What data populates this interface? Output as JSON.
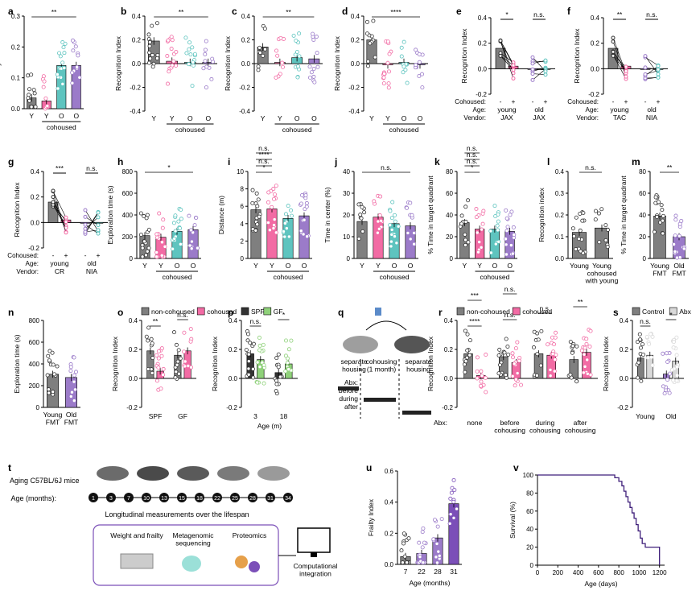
{
  "colors": {
    "grey": "#7f7f7f",
    "pink": "#f26ba4",
    "teal": "#5ec4bf",
    "purple": "#9b7bc9",
    "green": "#8fd17a",
    "dark": "#333333",
    "lightgrey": "#d9d9d9",
    "deeppurple": "#7b4fb8"
  },
  "panels": [
    {
      "id": "a",
      "type": "bar",
      "ylabel": "Frailty Index",
      "ylim": [
        0,
        0.3
      ],
      "yticks": [
        "0.0",
        "0.1",
        "0.2",
        "0.3"
      ],
      "xlabels": [
        "Y",
        "Y",
        "O",
        "O"
      ],
      "group": "cohoused",
      "bars": [
        0.035,
        0.025,
        0.14,
        0.14
      ],
      "colors": [
        "grey",
        "pink",
        "teal",
        "purple"
      ],
      "sig": [
        "**"
      ]
    },
    {
      "id": "b",
      "type": "bar",
      "ylabel": "Recognition Index",
      "ylim": [
        -0.4,
        0.4
      ],
      "yticks": [
        "-0.4",
        "-0.2",
        "0.0",
        "0.2",
        "0.4"
      ],
      "xlabels": [
        "Y",
        "Y",
        "O",
        "O"
      ],
      "group": "cohoused",
      "bars": [
        0.19,
        0.02,
        0.01,
        0.01
      ],
      "colors": [
        "grey",
        "pink",
        "teal",
        "purple"
      ],
      "sig": [
        "**"
      ]
    },
    {
      "id": "c",
      "type": "bar",
      "ylabel": "Recognition Index",
      "ylim": [
        -0.4,
        0.4
      ],
      "yticks": [
        "-0.4",
        "-0.2",
        "0.0",
        "0.2",
        "0.4"
      ],
      "xlabels": [
        "Y",
        "Y",
        "O",
        "O"
      ],
      "group": "cohoused",
      "bars": [
        0.14,
        0.01,
        0.05,
        0.04
      ],
      "colors": [
        "grey",
        "pink",
        "teal",
        "purple"
      ],
      "sig": [
        "**"
      ]
    },
    {
      "id": "d",
      "type": "bar",
      "ylabel": "Recognition Index",
      "ylim": [
        -0.4,
        0.4
      ],
      "yticks": [
        "-0.4",
        "-0.2",
        "0.0",
        "0.2",
        "0.4"
      ],
      "xlabels": [
        "Y",
        "Y",
        "O",
        "O"
      ],
      "group": "cohoused",
      "bars": [
        0.2,
        -0.01,
        0.01,
        -0.01
      ],
      "colors": [
        "grey",
        "pink",
        "teal",
        "purple"
      ],
      "sig": [
        "****"
      ]
    },
    {
      "id": "e",
      "type": "paired",
      "ylabel": "Recognition Index",
      "yticks": [
        "-0.2",
        "0.0",
        "0.2",
        "0.4"
      ],
      "rows": {
        "cohoused": [
          "-",
          "+",
          "-",
          "+"
        ],
        "age": [
          "young",
          "old"
        ],
        "vendor": [
          "JAX",
          "JAX"
        ]
      },
      "sig": [
        "*",
        "n.s."
      ]
    },
    {
      "id": "f",
      "type": "paired",
      "ylabel": "Recognition Index",
      "yticks": [
        "-0.2",
        "0.0",
        "0.2",
        "0.4"
      ],
      "rows": {
        "cohoused": [
          "-",
          "+",
          "-",
          "+"
        ],
        "age": [
          "young",
          "old"
        ],
        "vendor": [
          "TAC",
          "NIA"
        ]
      },
      "sig": [
        "**",
        "n.s."
      ]
    },
    {
      "id": "g",
      "type": "paired",
      "ylabel": "Recognition Index",
      "yticks": [
        "-0.2",
        "0.0",
        "0.2",
        "0.4"
      ],
      "rows": {
        "cohoused": [
          "-",
          "+",
          "-",
          "+"
        ],
        "age": [
          "young",
          "old"
        ],
        "vendor": [
          "CR",
          "NIA"
        ]
      },
      "sig": [
        "***",
        "n.s."
      ]
    },
    {
      "id": "h",
      "type": "bar",
      "ylabel": "Exploration time (s)",
      "ylim": [
        0,
        800
      ],
      "yticks": [
        "0",
        "200",
        "400",
        "600",
        "800"
      ],
      "xlabels": [
        "Y",
        "Y",
        "O",
        "O"
      ],
      "group": "cohoused",
      "bars": [
        210,
        195,
        250,
        265
      ],
      "colors": [
        "grey",
        "pink",
        "teal",
        "purple"
      ],
      "sig": [
        "*"
      ]
    },
    {
      "id": "i",
      "type": "bar",
      "ylabel": "Distance (m)",
      "ylim": [
        0,
        10
      ],
      "yticks": [
        "0",
        "2",
        "4",
        "6",
        "8",
        "10"
      ],
      "xlabels": [
        "Y",
        "Y",
        "O",
        "O"
      ],
      "group": "cohoused",
      "bars": [
        5.6,
        5.7,
        4.6,
        4.9
      ],
      "colors": [
        "grey",
        "pink",
        "teal",
        "purple"
      ],
      "sig": [
        "*",
        "n.s.",
        "****",
        "n.s."
      ]
    },
    {
      "id": "j",
      "type": "bar",
      "ylabel": "Time in center (%)",
      "ylim": [
        0,
        40
      ],
      "yticks": [
        "0",
        "10",
        "20",
        "30",
        "40"
      ],
      "xlabels": [
        "Y",
        "Y",
        "O",
        "O"
      ],
      "group": "cohoused",
      "bars": [
        17,
        19,
        16,
        15
      ],
      "colors": [
        "grey",
        "pink",
        "teal",
        "purple"
      ],
      "sig": [
        "n.s."
      ]
    },
    {
      "id": "k",
      "type": "bar",
      "ylabel": "% Time in target quadrant",
      "ylim": [
        0,
        80
      ],
      "yticks": [
        "0",
        "20",
        "40",
        "60",
        "80"
      ],
      "xlabels": [
        "Y",
        "Y",
        "O",
        "O"
      ],
      "group": "cohoused",
      "bars": [
        33,
        27,
        27,
        25
      ],
      "colors": [
        "grey",
        "pink",
        "teal",
        "purple"
      ],
      "sig": [
        "*",
        "n.s.",
        "n.s.",
        "n.s."
      ]
    },
    {
      "id": "l",
      "type": "bar",
      "ylabel": "Recognition index",
      "ylim": [
        0,
        0.4
      ],
      "yticks": [
        "0.0",
        "0.1",
        "0.2",
        "0.3",
        "0.4"
      ],
      "xlabels": [
        "Young",
        "Young\ncohoused\nwith young"
      ],
      "bars": [
        0.12,
        0.14
      ],
      "colors": [
        "grey",
        "grey"
      ],
      "sig": [
        "n.s."
      ]
    },
    {
      "id": "m",
      "type": "bar",
      "ylabel": "% Time in target quadrant",
      "ylim": [
        0,
        80
      ],
      "yticks": [
        "0",
        "20",
        "40",
        "60",
        "80"
      ],
      "xlabels": [
        "Young\nFMT",
        "Old\nFMT"
      ],
      "bars": [
        39,
        20
      ],
      "colors": [
        "grey",
        "purple"
      ],
      "sig": [
        "**"
      ]
    },
    {
      "id": "n",
      "type": "bar",
      "ylabel": "Exploration time (s)",
      "ylim": [
        0,
        800
      ],
      "yticks": [
        "0",
        "200",
        "400",
        "600",
        "800"
      ],
      "xlabels": [
        "Young\nFMT",
        "Old\nFMT"
      ],
      "bars": [
        305,
        275
      ],
      "colors": [
        "grey",
        "purple"
      ],
      "sig": []
    },
    {
      "id": "o",
      "type": "bar",
      "ylabel": "Recognition Index",
      "ylim": [
        -0.2,
        0.4
      ],
      "yticks": [
        "-0.2",
        "0.0",
        "0.2",
        "0.4"
      ],
      "xlabels": [
        "SPF",
        "GF"
      ],
      "legend": [
        "non-cohoused",
        "cohoused"
      ],
      "bars": [
        0.19,
        0.05,
        0.16,
        0.19
      ],
      "colors": [
        "grey",
        "pink",
        "grey",
        "pink"
      ],
      "sig": [
        "**",
        "n.s."
      ]
    },
    {
      "id": "p",
      "type": "bar",
      "ylabel": "Recognition Index",
      "ylim": [
        -0.2,
        0.4
      ],
      "yticks": [
        "-0.2",
        "0.0",
        "0.2",
        "0.4"
      ],
      "xlabels": [
        "3",
        "18"
      ],
      "xtitle": "Age (m)",
      "legend": [
        "SPF",
        "GF"
      ],
      "bars": [
        0.17,
        0.13,
        0.04,
        0.1
      ],
      "colors": [
        "dark",
        "green",
        "dark",
        "green"
      ],
      "sig": [
        "n.s.",
        "*"
      ]
    },
    {
      "id": "r",
      "type": "bar",
      "ylabel": "Recognition Index",
      "ylim": [
        -0.2,
        0.4
      ],
      "yticks": [
        "-0.2",
        "0.0",
        "0.2",
        "0.4"
      ],
      "xlabels": [
        "none",
        "before\ncohousing",
        "during\ncohousing",
        "after\ncohousing"
      ],
      "rowlabel": "Abx:",
      "legend": [
        "non-cohoused",
        "cohoused"
      ],
      "bars": [
        0.17,
        0.02,
        0.15,
        0.11,
        0.17,
        0.16,
        0.13,
        0.18
      ],
      "colors": [
        "grey",
        "pink",
        "grey",
        "pink",
        "grey",
        "pink",
        "grey",
        "pink"
      ],
      "sig": [
        "****",
        "n.s.",
        "n.s.",
        "**",
        "***",
        "n.s."
      ]
    },
    {
      "id": "s",
      "type": "bar",
      "ylabel": "Recognition Index",
      "ylim": [
        -0.2,
        0.4
      ],
      "yticks": [
        "-0.2",
        "0.0",
        "0.2",
        "0.4"
      ],
      "xlabels": [
        "Young",
        "Old"
      ],
      "legend": [
        "Control",
        "Abx"
      ],
      "bars": [
        0.14,
        0.16,
        0.03,
        0.12
      ],
      "colors": [
        "grey",
        "lightgrey",
        "purple",
        "lightgrey"
      ],
      "sig": [
        "n.s.",
        "*"
      ]
    },
    {
      "id": "u",
      "type": "bar",
      "ylabel": "Frailty Index",
      "ylim": [
        0,
        0.6
      ],
      "yticks": [
        "0.0",
        "0.2",
        "0.4",
        "0.6"
      ],
      "xlabels": [
        "7",
        "22",
        "28",
        "31"
      ],
      "xtitle": "Age (months)",
      "bars": [
        0.05,
        0.07,
        0.17,
        0.39
      ],
      "colors": [
        "grey",
        "purple",
        "purple",
        "deeppurple"
      ],
      "sig": []
    }
  ],
  "panel_q": {
    "labels": [
      "separate\nhousing",
      "cohousing\n(1 month)",
      "separate\nhousing"
    ],
    "abx_label": "Abx:",
    "rows": [
      "before",
      "during",
      "after"
    ]
  },
  "panel_t": {
    "title": "Aging C57BL/6J mice",
    "age_label": "Age (months):",
    "ages": [
      "1",
      "3",
      "7",
      "10",
      "13",
      "15",
      "18",
      "22",
      "25",
      "28",
      "31",
      "34"
    ],
    "subtitle": "Longitudinal measurements over the lifespan",
    "boxes": [
      "Weight and frailty",
      "Metagenomic\nsequencing",
      "Proteomics"
    ],
    "output": "Computational\nintegration"
  },
  "panel_v": {
    "ylabel": "Survival (%)",
    "xlabel": "Age (days)",
    "yticks": [
      "0",
      "20",
      "40",
      "60",
      "80",
      "100"
    ],
    "xticks": [
      "0",
      "200",
      "400",
      "600",
      "800",
      "1000",
      "1200"
    ],
    "xlim": [
      0,
      1250
    ],
    "ylim": [
      0,
      100
    ],
    "steps": [
      [
        0,
        100
      ],
      [
        700,
        100
      ],
      [
        760,
        97
      ],
      [
        800,
        93
      ],
      [
        830,
        88
      ],
      [
        850,
        82
      ],
      [
        870,
        76
      ],
      [
        890,
        70
      ],
      [
        910,
        64
      ],
      [
        930,
        58
      ],
      [
        950,
        52
      ],
      [
        970,
        45
      ],
      [
        990,
        38
      ],
      [
        1010,
        30
      ],
      [
        1030,
        24
      ],
      [
        1060,
        20
      ],
      [
        1120,
        20
      ],
      [
        1200,
        0
      ]
    ]
  },
  "chart_data": [
    {
      "type": "bar",
      "id": "a",
      "categories": [
        "Y",
        "Y",
        "O",
        "O"
      ],
      "values": [
        0.035,
        0.025,
        0.14,
        0.14
      ],
      "ylabel": "Frailty Index",
      "ylim": [
        0,
        0.3
      ]
    },
    {
      "type": "bar",
      "id": "b",
      "categories": [
        "Y",
        "Y",
        "O",
        "O"
      ],
      "values": [
        0.19,
        0.02,
        0.01,
        0.01
      ],
      "ylabel": "Recognition Index",
      "ylim": [
        -0.4,
        0.4
      ]
    },
    {
      "type": "bar",
      "id": "c",
      "categories": [
        "Y",
        "Y",
        "O",
        "O"
      ],
      "values": [
        0.14,
        0.01,
        0.05,
        0.04
      ],
      "ylabel": "Recognition Index",
      "ylim": [
        -0.4,
        0.4
      ]
    },
    {
      "type": "bar",
      "id": "d",
      "categories": [
        "Y",
        "Y",
        "O",
        "O"
      ],
      "values": [
        0.2,
        -0.01,
        0.01,
        -0.01
      ],
      "ylabel": "Recognition Index",
      "ylim": [
        -0.4,
        0.4
      ]
    },
    {
      "type": "bar",
      "id": "h",
      "categories": [
        "Y",
        "Y",
        "O",
        "O"
      ],
      "values": [
        210,
        195,
        250,
        265
      ],
      "ylabel": "Exploration time (s)",
      "ylim": [
        0,
        800
      ]
    },
    {
      "type": "bar",
      "id": "i",
      "categories": [
        "Y",
        "Y",
        "O",
        "O"
      ],
      "values": [
        5.6,
        5.7,
        4.6,
        4.9
      ],
      "ylabel": "Distance (m)",
      "ylim": [
        0,
        10
      ]
    },
    {
      "type": "bar",
      "id": "j",
      "categories": [
        "Y",
        "Y",
        "O",
        "O"
      ],
      "values": [
        17,
        19,
        16,
        15
      ],
      "ylabel": "Time in center (%)",
      "ylim": [
        0,
        40
      ]
    },
    {
      "type": "bar",
      "id": "k",
      "categories": [
        "Y",
        "Y",
        "O",
        "O"
      ],
      "values": [
        33,
        27,
        27,
        25
      ],
      "ylabel": "% Time in target quadrant",
      "ylim": [
        0,
        80
      ]
    },
    {
      "type": "bar",
      "id": "l",
      "categories": [
        "Young",
        "Young cohoused with young"
      ],
      "values": [
        0.12,
        0.14
      ],
      "ylabel": "Recognition index",
      "ylim": [
        0,
        0.4
      ]
    },
    {
      "type": "bar",
      "id": "m",
      "categories": [
        "Young FMT",
        "Old FMT"
      ],
      "values": [
        39,
        20
      ],
      "ylabel": "% Time in target quadrant",
      "ylim": [
        0,
        80
      ]
    },
    {
      "type": "bar",
      "id": "n",
      "categories": [
        "Young FMT",
        "Old FMT"
      ],
      "values": [
        305,
        275
      ],
      "ylabel": "Exploration time (s)",
      "ylim": [
        0,
        800
      ]
    },
    {
      "type": "bar",
      "id": "u",
      "categories": [
        "7",
        "22",
        "28",
        "31"
      ],
      "values": [
        0.05,
        0.07,
        0.17,
        0.39
      ],
      "xlabel": "Age (months)",
      "ylabel": "Frailty Index",
      "ylim": [
        0,
        0.6
      ]
    },
    {
      "type": "line",
      "id": "v",
      "x": [
        0,
        700,
        760,
        800,
        830,
        850,
        870,
        890,
        910,
        930,
        950,
        970,
        990,
        1010,
        1030,
        1060,
        1120,
        1200
      ],
      "y": [
        100,
        100,
        97,
        93,
        88,
        82,
        76,
        70,
        64,
        58,
        52,
        45,
        38,
        30,
        24,
        20,
        20,
        0
      ],
      "xlabel": "Age (days)",
      "ylabel": "Survival (%)",
      "xlim": [
        0,
        1250
      ],
      "ylim": [
        0,
        100
      ]
    }
  ]
}
